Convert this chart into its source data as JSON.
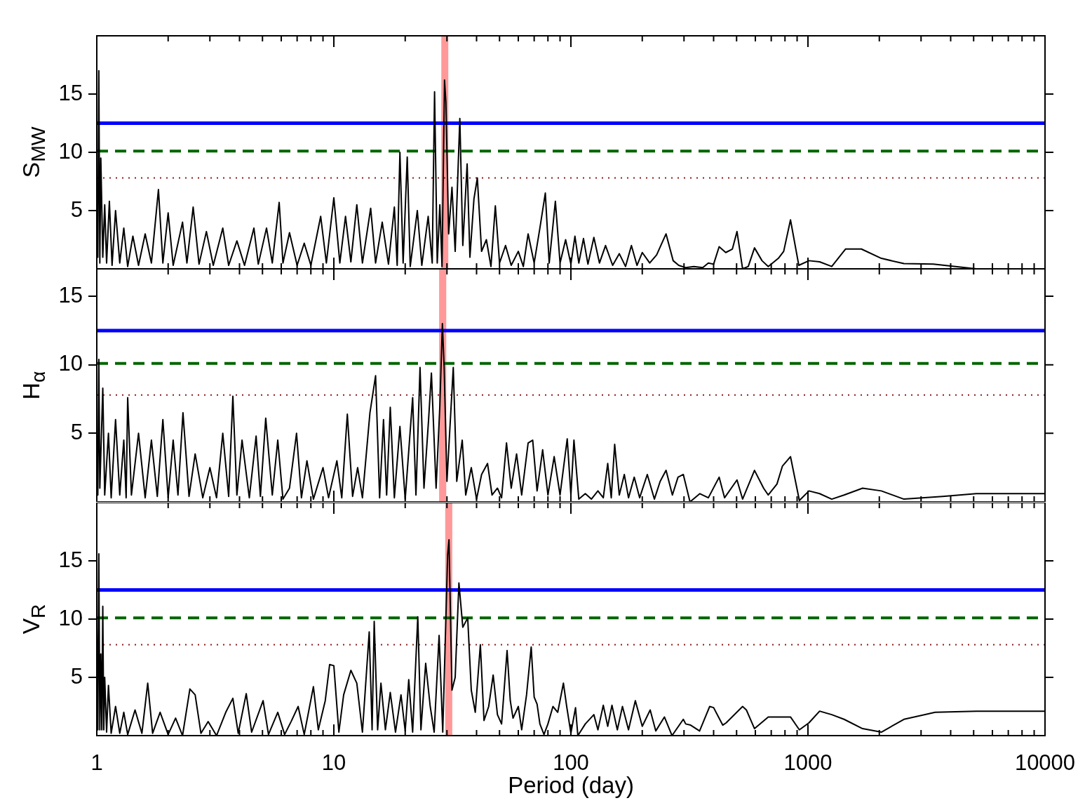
{
  "chart_data": [
    {
      "type": "line",
      "ylabel": "S$_{MW}$",
      "color": "#000000",
      "log": "x",
      "tick_labels": "y",
      "xlim": [
        1,
        10000
      ],
      "ylim": [
        0,
        20
      ],
      "yticks": [
        5,
        10,
        15
      ],
      "xticks": [
        1,
        {
          "value": 2,
          "label": null
        },
        {
          "value": 3,
          "label": null
        },
        {
          "value": 4,
          "label": null
        },
        {
          "value": 5,
          "label": null
        },
        {
          "value": 6,
          "label": null
        },
        {
          "value": 7,
          "label": null
        },
        {
          "value": 8,
          "label": null
        },
        {
          "value": 9,
          "label": null
        },
        10,
        {
          "value": 20,
          "label": null
        },
        {
          "value": 30,
          "label": null
        },
        {
          "value": 40,
          "label": null
        },
        {
          "value": 50,
          "label": null
        },
        {
          "value": 60,
          "label": null
        },
        {
          "value": 70,
          "label": null
        },
        {
          "value": 80,
          "label": null
        },
        {
          "value": 90,
          "label": null
        },
        100,
        {
          "value": 200,
          "label": null
        },
        {
          "value": 300,
          "label": null
        },
        {
          "value": 400,
          "label": null
        },
        {
          "value": 500,
          "label": null
        },
        {
          "value": 600,
          "label": null
        },
        {
          "value": 700,
          "label": null
        },
        {
          "value": 800,
          "label": null
        },
        {
          "value": 900,
          "label": null
        },
        1000,
        {
          "value": 2000,
          "label": null
        },
        {
          "value": 3000,
          "label": null
        },
        {
          "value": 4000,
          "label": null
        },
        {
          "value": 5000,
          "label": null
        },
        {
          "value": 6000,
          "label": null
        },
        {
          "value": 7000,
          "label": null
        },
        {
          "value": 8000,
          "label": null
        },
        {
          "value": 9000,
          "label": null
        },
        10000
      ],
      "ref_lines": [
        {
          "axis": "y",
          "value": 12.5,
          "color": "#0000ff",
          "line_style": "solid"
        },
        {
          "axis": "y",
          "value": 10.1,
          "color": "#006400",
          "line_style": "dashed"
        },
        {
          "axis": "y",
          "value": 7.8,
          "color": "#8b1a1a",
          "line_style": "dotted"
        }
      ],
      "bands": [
        {
          "axis": "x",
          "from": 28.4,
          "to": 30.4,
          "color": "#ff9999"
        }
      ],
      "x": [
        1.0,
        1.01,
        1.02,
        1.03,
        1.04,
        1.06,
        1.08,
        1.1,
        1.13,
        1.16,
        1.2,
        1.25,
        1.3,
        1.35,
        1.42,
        1.5,
        1.6,
        1.7,
        1.82,
        1.9,
        2.0,
        2.1,
        2.3,
        2.4,
        2.55,
        2.7,
        2.9,
        3.1,
        3.4,
        3.6,
        3.9,
        4.2,
        4.6,
        4.8,
        5.2,
        5.5,
        5.88,
        6.1,
        6.5,
        7.0,
        7.5,
        8.0,
        8.8,
        9.3,
        10,
        10.6,
        11.2,
        11.8,
        12.5,
        13.2,
        14.3,
        15,
        16,
        17,
        18,
        18.5,
        19,
        19.6,
        20.4,
        21,
        22.5,
        23.5,
        25,
        26,
        26.6,
        27.3,
        28,
        28.6,
        29.3,
        29.7,
        30.5,
        31.5,
        32.5,
        34,
        35,
        36.5,
        37.5,
        39,
        40.3,
        42,
        44,
        46,
        48,
        50,
        53,
        56,
        60,
        63,
        66,
        70,
        74,
        78,
        81,
        86,
        90,
        95,
        100,
        104,
        108,
        113,
        118,
        125,
        132,
        140,
        150,
        160,
        170,
        180,
        190,
        200,
        215,
        230,
        252,
        270,
        285,
        305,
        330,
        360,
        380,
        400,
        422,
        450,
        480,
        502,
        530,
        560,
        595,
        640,
        680,
        750,
        790,
        844,
        915,
        1010,
        1120,
        1260,
        1440,
        1680,
        2040,
        2540,
        3380,
        5130,
        10000
      ],
      "values": [
        7,
        1,
        17,
        0.5,
        9.5,
        1,
        5.5,
        0.5,
        5.8,
        0.3,
        5,
        0.5,
        3.5,
        0.2,
        2.8,
        0.3,
        3,
        0.5,
        6.8,
        0.5,
        4.8,
        0.3,
        4,
        0.5,
        5.3,
        0.4,
        3.2,
        0.3,
        3.5,
        0.3,
        2.4,
        0.3,
        3.5,
        0.4,
        3.5,
        0.5,
        5.7,
        0.5,
        3.1,
        0.3,
        2.2,
        0.3,
        4.5,
        0.5,
        6.1,
        0.5,
        4.5,
        0.6,
        5.5,
        0.5,
        5.2,
        0.5,
        4,
        0.4,
        5.3,
        0.3,
        10,
        0.5,
        9.6,
        0.2,
        5,
        0.3,
        4.5,
        0.5,
        15.2,
        0.5,
        5.5,
        0.2,
        16.2,
        14.3,
        3,
        7,
        1.5,
        12.9,
        2,
        9,
        1,
        6,
        7.8,
        1.5,
        2.5,
        0.2,
        5.4,
        0.5,
        2,
        0.3,
        1.5,
        0.2,
        3,
        0.5,
        3.5,
        6.5,
        0.5,
        5.8,
        0.5,
        2.5,
        0.4,
        2.8,
        0.5,
        2.6,
        0.4,
        2.7,
        0.5,
        2,
        0.3,
        1.3,
        0.2,
        2,
        0.3,
        1.4,
        0.5,
        1.2,
        3.0,
        0.7,
        0.3,
        0.1,
        0.2,
        0.1,
        0.5,
        0.4,
        1.9,
        1.4,
        1.7,
        3.2,
        0,
        0.2,
        1.8,
        0.7,
        0.2,
        0.9,
        1.5,
        4.2,
        0.3,
        0.7,
        0.6,
        0.2,
        1.7,
        1.7,
        0.9,
        0.45,
        0.4,
        0,
        0
      ]
    },
    {
      "type": "line",
      "ylabel": "H$_{α}$",
      "color": "#000000",
      "log": "x",
      "tick_labels": "y",
      "xlim": [
        1,
        10000
      ],
      "ylim": [
        0,
        17
      ],
      "yticks": [
        5,
        10,
        15
      ],
      "xticks": [
        1,
        {
          "value": 2,
          "label": null
        },
        {
          "value": 3,
          "label": null
        },
        {
          "value": 4,
          "label": null
        },
        {
          "value": 5,
          "label": null
        },
        {
          "value": 6,
          "label": null
        },
        {
          "value": 7,
          "label": null
        },
        {
          "value": 8,
          "label": null
        },
        {
          "value": 9,
          "label": null
        },
        10,
        {
          "value": 20,
          "label": null
        },
        {
          "value": 30,
          "label": null
        },
        {
          "value": 40,
          "label": null
        },
        {
          "value": 50,
          "label": null
        },
        {
          "value": 60,
          "label": null
        },
        {
          "value": 70,
          "label": null
        },
        {
          "value": 80,
          "label": null
        },
        {
          "value": 90,
          "label": null
        },
        100,
        {
          "value": 200,
          "label": null
        },
        {
          "value": 300,
          "label": null
        },
        {
          "value": 400,
          "label": null
        },
        {
          "value": 500,
          "label": null
        },
        {
          "value": 600,
          "label": null
        },
        {
          "value": 700,
          "label": null
        },
        {
          "value": 800,
          "label": null
        },
        {
          "value": 900,
          "label": null
        },
        1000,
        {
          "value": 2000,
          "label": null
        },
        {
          "value": 3000,
          "label": null
        },
        {
          "value": 4000,
          "label": null
        },
        {
          "value": 5000,
          "label": null
        },
        {
          "value": 6000,
          "label": null
        },
        {
          "value": 7000,
          "label": null
        },
        {
          "value": 8000,
          "label": null
        },
        {
          "value": 9000,
          "label": null
        },
        10000
      ],
      "ref_lines": [
        {
          "axis": "y",
          "value": 12.5,
          "color": "#0000ff",
          "line_style": "solid"
        },
        {
          "axis": "y",
          "value": 10.1,
          "color": "#006400",
          "line_style": "dashed"
        },
        {
          "axis": "y",
          "value": 7.8,
          "color": "#8b1a1a",
          "line_style": "dotted"
        }
      ],
      "bands": [
        {
          "axis": "x",
          "from": 27.8,
          "to": 29.8,
          "color": "#ff9999"
        }
      ],
      "x": [
        1.0,
        1.01,
        1.02,
        1.03,
        1.06,
        1.08,
        1.12,
        1.15,
        1.2,
        1.25,
        1.3,
        1.33,
        1.35,
        1.4,
        1.5,
        1.6,
        1.7,
        1.8,
        1.9,
        2.0,
        2.1,
        2.2,
        2.31,
        2.45,
        2.6,
        2.8,
        3.0,
        3.2,
        3.4,
        3.6,
        3.75,
        3.9,
        4.1,
        4.4,
        4.7,
        4.9,
        5.16,
        5.5,
        5.8,
        6.1,
        6.5,
        6.96,
        7.3,
        7.7,
        8.2,
        9,
        9.5,
        10.3,
        10.8,
        11.4,
        12,
        12.6,
        13.2,
        14.2,
        15.0,
        15.6,
        16.2,
        16.7,
        17.3,
        18,
        19,
        20,
        21.5,
        22.2,
        23.1,
        24,
        25.1,
        25.8,
        27,
        28,
        28.7,
        29.2,
        30,
        31.9,
        33,
        34.8,
        36,
        38,
        40,
        42,
        44.5,
        46.5,
        49,
        51,
        53.5,
        56,
        59,
        62,
        66,
        69,
        72,
        76,
        80,
        85,
        90,
        96.5,
        100,
        103,
        108,
        115,
        122,
        130,
        137,
        143,
        148,
        153,
        160,
        168,
        175,
        185,
        195,
        210,
        225,
        238,
        252,
        268,
        283,
        298,
        318,
        350,
        380,
        422,
        445,
        502,
        530,
        595,
        650,
        680,
        740,
        780,
        844,
        920,
        1010,
        1120,
        1260,
        1420,
        1700,
        2040,
        2540,
        3700,
        5130,
        10000
      ],
      "values": [
        5,
        0.5,
        10.4,
        1,
        8.3,
        0.5,
        5,
        0.3,
        6,
        0.5,
        4.5,
        0.3,
        7.6,
        0.5,
        5,
        0.3,
        4.5,
        0.4,
        6,
        0.3,
        4.5,
        0.5,
        6.5,
        0.4,
        3.5,
        0.3,
        2.5,
        0.3,
        5,
        0.4,
        7.7,
        0.5,
        4.5,
        0.3,
        4.8,
        0.4,
        6.1,
        0.5,
        4.5,
        0.2,
        1,
        5.0,
        0.3,
        3,
        0.2,
        2.5,
        0.3,
        3,
        0.3,
        6.4,
        0.4,
        2.5,
        0.3,
        6.5,
        9.2,
        0.3,
        6,
        0.5,
        6.9,
        0.3,
        5.5,
        0.2,
        7.6,
        0.5,
        9.8,
        1,
        6,
        9.4,
        1,
        7,
        13,
        9.8,
        1.5,
        9.8,
        1.5,
        4.5,
        0.5,
        2.5,
        0.2,
        2,
        2.8,
        0.5,
        1,
        0.3,
        4.3,
        1,
        3.5,
        0.5,
        4.3,
        4.5,
        0.8,
        3.8,
        0.5,
        3.3,
        0.5,
        4.6,
        0.5,
        4.5,
        0.2,
        0.6,
        0.2,
        0.8,
        0.3,
        2.8,
        0.3,
        4.2,
        0.5,
        2,
        0.3,
        1.8,
        0.3,
        2,
        0.2,
        1.5,
        2.3,
        0.5,
        1.8,
        2.0,
        0,
        0.6,
        0.3,
        1.8,
        0.3,
        1.6,
        0.2,
        2.3,
        1,
        0.5,
        1.3,
        2.6,
        3.3,
        0.1,
        0.8,
        0.6,
        0.2,
        0.5,
        1.0,
        0.8,
        0.2,
        0.4,
        0.6,
        0.6
      ]
    },
    {
      "type": "line",
      "ylabel": "V$_{R}$",
      "xlabel": "Period (day)",
      "color": "#000000",
      "log": "x",
      "xlim": [
        1,
        10000
      ],
      "ylim": [
        0,
        20
      ],
      "yticks": [
        5,
        10,
        15
      ],
      "xticks": [
        1,
        {
          "value": 2,
          "label": null
        },
        {
          "value": 3,
          "label": null
        },
        {
          "value": 4,
          "label": null
        },
        {
          "value": 5,
          "label": null
        },
        {
          "value": 6,
          "label": null
        },
        {
          "value": 7,
          "label": null
        },
        {
          "value": 8,
          "label": null
        },
        {
          "value": 9,
          "label": null
        },
        10,
        {
          "value": 20,
          "label": null
        },
        {
          "value": 30,
          "label": null
        },
        {
          "value": 40,
          "label": null
        },
        {
          "value": 50,
          "label": null
        },
        {
          "value": 60,
          "label": null
        },
        {
          "value": 70,
          "label": null
        },
        {
          "value": 80,
          "label": null
        },
        {
          "value": 90,
          "label": null
        },
        100,
        {
          "value": 200,
          "label": null
        },
        {
          "value": 300,
          "label": null
        },
        {
          "value": 400,
          "label": null
        },
        {
          "value": 500,
          "label": null
        },
        {
          "value": 600,
          "label": null
        },
        {
          "value": 700,
          "label": null
        },
        {
          "value": 800,
          "label": null
        },
        {
          "value": 900,
          "label": null
        },
        1000,
        {
          "value": 2000,
          "label": null
        },
        {
          "value": 3000,
          "label": null
        },
        {
          "value": 4000,
          "label": null
        },
        {
          "value": 5000,
          "label": null
        },
        {
          "value": 6000,
          "label": null
        },
        {
          "value": 7000,
          "label": null
        },
        {
          "value": 8000,
          "label": null
        },
        {
          "value": 9000,
          "label": null
        },
        10000
      ],
      "ref_lines": [
        {
          "axis": "y",
          "value": 12.5,
          "color": "#0000ff",
          "line_style": "solid"
        },
        {
          "axis": "y",
          "value": 10.1,
          "color": "#006400",
          "line_style": "dashed"
        },
        {
          "axis": "y",
          "value": 7.8,
          "color": "#8b1a1a",
          "line_style": "dotted"
        }
      ],
      "bands": [
        {
          "axis": "x",
          "from": 29.5,
          "to": 31.6,
          "color": "#ff9999"
        }
      ],
      "x": [
        1.0,
        1.01,
        1.02,
        1.03,
        1.04,
        1.05,
        1.06,
        1.07,
        1.08,
        1.1,
        1.12,
        1.15,
        1.2,
        1.25,
        1.3,
        1.35,
        1.45,
        1.55,
        1.64,
        1.72,
        1.85,
        2.0,
        2.15,
        2.3,
        2.47,
        2.6,
        2.75,
        2.95,
        3.2,
        3.5,
        3.75,
        3.95,
        4.27,
        4.5,
        5.03,
        5.3,
        5.8,
        6.2,
        6.6,
        7.07,
        7.5,
        8.2,
        8.6,
        9.2,
        9.6,
        10,
        10.5,
        11,
        11.8,
        12.5,
        13.2,
        14.1,
        14.5,
        14.8,
        15.3,
        15.8,
        16.5,
        17.3,
        18.2,
        19.2,
        20,
        20.7,
        21.5,
        22.6,
        23.3,
        24.4,
        25.5,
        26.5,
        27.8,
        28.8,
        30.2,
        30.6,
        31.5,
        32.5,
        33.7,
        35,
        36.7,
        38,
        39.5,
        41.5,
        43,
        45,
        47,
        49,
        51,
        53.8,
        55.5,
        57,
        60,
        62,
        65,
        68,
        70,
        72,
        74,
        77,
        80,
        84,
        88,
        93,
        96,
        100,
        104.6,
        107,
        115,
        125,
        130,
        137,
        143,
        149,
        157,
        165,
        175,
        187,
        200,
        216,
        228,
        248,
        267,
        298,
        305,
        320,
        349,
        385,
        400,
        437,
        452,
        530,
        550,
        595,
        680,
        844,
        920,
        1010,
        1120,
        1260,
        1420,
        1700,
        2040,
        2540,
        3440,
        5130,
        10000
      ],
      "values": [
        9.3,
        0.5,
        15.6,
        0.5,
        7,
        0.5,
        11.1,
        0.5,
        5,
        0.3,
        4.3,
        0.2,
        2.5,
        0.2,
        2,
        0.1,
        2.2,
        0.2,
        4.5,
        0.2,
        2,
        0.1,
        1.5,
        0,
        4.0,
        3.5,
        0.2,
        1.2,
        0,
        2,
        3.2,
        0.2,
        3.6,
        0.3,
        3,
        0.1,
        2,
        0.1,
        1.2,
        2.5,
        0.1,
        4.2,
        0.5,
        3,
        6.1,
        6,
        0.3,
        3.5,
        5.6,
        4.5,
        0.3,
        8.9,
        0.5,
        9.8,
        0.5,
        4.5,
        0.5,
        3.7,
        0.3,
        3.5,
        0.4,
        4.8,
        0.3,
        10.2,
        0.5,
        6.2,
        2.5,
        0.3,
        8.6,
        0.3,
        15.5,
        16.8,
        3.9,
        5,
        13.1,
        9.3,
        10.1,
        3.9,
        2,
        7.8,
        1.3,
        2.5,
        5.2,
        1.8,
        1,
        7.3,
        3,
        1.5,
        2.5,
        0.5,
        3.5,
        7.6,
        3.3,
        2.7,
        1,
        0.1,
        1,
        2.5,
        2,
        4.5,
        2.5,
        0.2,
        2.4,
        0,
        1,
        1.8,
        0.5,
        2.6,
        0.8,
        2.6,
        0.5,
        2.5,
        0.5,
        3.0,
        0.8,
        2.2,
        0.4,
        1.6,
        0,
        1.4,
        1.0,
        0.9,
        0.4,
        2.5,
        2.4,
        0.9,
        1.1,
        2.5,
        2.2,
        0.6,
        1.6,
        1.6,
        0.5,
        1.1,
        2.1,
        1.8,
        1.4,
        0.6,
        0.3,
        1.4,
        2.0,
        2.1,
        2.1
      ]
    }
  ]
}
